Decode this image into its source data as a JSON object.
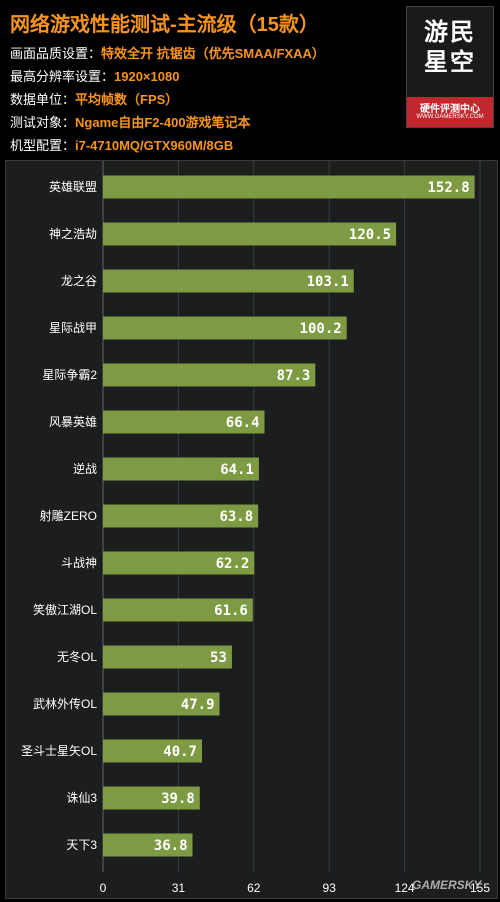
{
  "header": {
    "title": "网络游戏性能测试-主流级（15款）",
    "specs": [
      {
        "label": "画面品质设置：",
        "value": "特效全开  抗锯齿（优先SMAA/FXAA）"
      },
      {
        "label": "最高分辨率设置：",
        "value": "1920×1080"
      },
      {
        "label": "数据单位：",
        "value": "平均帧数（FPS）"
      },
      {
        "label": "测试对象：",
        "value": "Ngame自由F2-400游戏笔记本"
      },
      {
        "label": "机型配置：",
        "value": "i7-4710MQ/GTX960M/8GB"
      }
    ]
  },
  "logo": {
    "text_line1": "游民",
    "text_line2": "星空",
    "subtitle": "硬件评测中心",
    "url": "WWW.GAMERSKY.COM"
  },
  "watermark": "GAMERSKY",
  "colors": {
    "bar": "#7e9b43",
    "bar_label": "#ffffff",
    "grid": "#3a3d3f",
    "accent": "#f7941d"
  },
  "chart_data": {
    "type": "bar",
    "orientation": "horizontal",
    "title": "网络游戏性能测试-主流级（15款）",
    "xlabel": "",
    "ylabel": "",
    "xlim": [
      0,
      155
    ],
    "x_ticks": [
      0,
      31,
      62,
      93,
      124,
      155
    ],
    "grid": true,
    "categories": [
      "英雄联盟",
      "神之浩劫",
      "龙之谷",
      "星际战甲",
      "星际争霸2",
      "风暴英雄",
      "逆战",
      "射雕ZERO",
      "斗战神",
      "笑傲江湖OL",
      "无冬OL",
      "武林外传OL",
      "圣斗士星矢OL",
      "诛仙3",
      "天下3"
    ],
    "values": [
      152.8,
      120.5,
      103.1,
      100.2,
      87.3,
      66.4,
      64.1,
      63.8,
      62.2,
      61.6,
      53,
      47.9,
      40.7,
      39.8,
      36.8
    ],
    "value_labels": [
      "152.8",
      "120.5",
      "103.1",
      "100.2",
      "87.3",
      "66.4",
      "64.1",
      "63.8",
      "62.2",
      "61.6",
      "53",
      "47.9",
      "40.7",
      "39.8",
      "36.8"
    ]
  }
}
